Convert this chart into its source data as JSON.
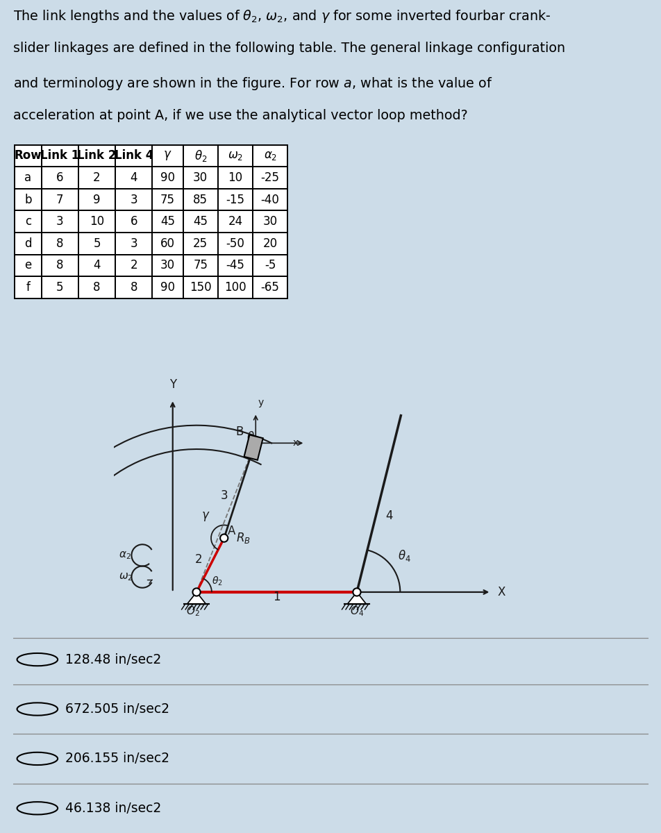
{
  "lines": [
    "The link lengths and the values of $\\theta_2$, $\\omega_2$, and $\\gamma$ for some inverted fourbar crank-",
    "slider linkages are defined in the following table. The general linkage configuration",
    "and terminology are shown in the figure. For row $a$, what is the value of",
    "acceleration at point A, if we use the analytical vector loop method?"
  ],
  "table_headers": [
    "Row",
    "Link 1",
    "Link 2",
    "Link 4",
    "$\\gamma$",
    "$\\theta_2$",
    "$\\omega_2$",
    "$\\alpha_2$"
  ],
  "table_rows": [
    [
      "a",
      "6",
      "2",
      "4",
      "90",
      "30",
      "10",
      "-25"
    ],
    [
      "b",
      "7",
      "9",
      "3",
      "75",
      "85",
      "-15",
      "-40"
    ],
    [
      "c",
      "3",
      "10",
      "6",
      "45",
      "45",
      "24",
      "30"
    ],
    [
      "d",
      "8",
      "5",
      "3",
      "60",
      "25",
      "-50",
      "20"
    ],
    [
      "e",
      "8",
      "4",
      "2",
      "30",
      "75",
      "-45",
      "-5"
    ],
    [
      "f",
      "5",
      "8",
      "8",
      "90",
      "150",
      "100",
      "-65"
    ]
  ],
  "options": [
    "128.48 in/sec2",
    "672.505 in/sec2",
    "206.155 in/sec2",
    "46.138 in/sec2"
  ],
  "bg_color": "#ccdce8",
  "red": "#cc0000",
  "dark": "#1a1a1a",
  "gray": "#777777"
}
